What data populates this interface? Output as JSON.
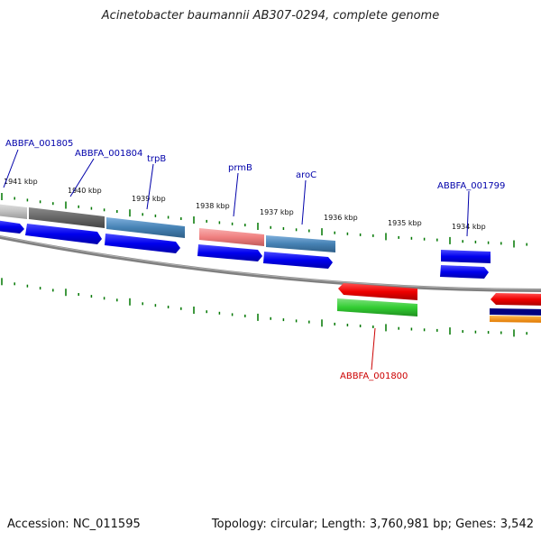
{
  "title": "Acinetobacter baumannii AB307-0294, complete genome",
  "footer": {
    "accession": "Accession: NC_011595",
    "summary": "Topology: circular; Length: 3,760,981 bp; Genes: 3,542"
  },
  "colors": {
    "forward_cds": "#0000ee",
    "reverse_cds": "#ee0000",
    "steelblue": "#4682b4",
    "backbone": "#808080",
    "tick": "#007700",
    "label_forward": "#0000aa",
    "label_reverse": "#cc0000"
  },
  "scale_labels": [
    "1941 kbp",
    "1940 kbp",
    "1939 kbp",
    "1938 kbp",
    "1937 kbp",
    "1936 kbp",
    "1935 kbp",
    "1934 kbp"
  ],
  "gene_labels": [
    {
      "text": "ABBFA_001805",
      "strand": "forward"
    },
    {
      "text": "ABBFA_001804",
      "strand": "forward"
    },
    {
      "text": "trpB",
      "strand": "forward"
    },
    {
      "text": "prmB",
      "strand": "forward"
    },
    {
      "text": "aroC",
      "strand": "forward"
    },
    {
      "text": "ABBFA_001799",
      "strand": "forward"
    },
    {
      "text": "ABBFA_001800",
      "strand": "reverse"
    }
  ]
}
